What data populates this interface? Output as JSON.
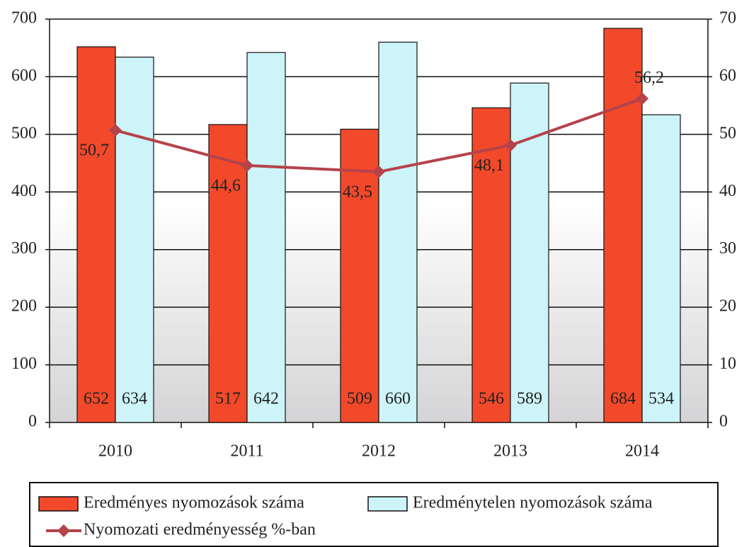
{
  "chart_data": {
    "type": "bar",
    "categories": [
      "2010",
      "2011",
      "2012",
      "2013",
      "2014"
    ],
    "series": [
      {
        "name": "Eredményes nyomozások száma",
        "color": "#f2492b",
        "values": [
          652,
          517,
          509,
          546,
          684
        ]
      },
      {
        "name": "Eredménytelen nyomozások száma",
        "color": "#cdf4f8",
        "values": [
          634,
          642,
          660,
          589,
          534
        ]
      },
      {
        "name": "Nyomozati eredményesség %-ban",
        "type": "line",
        "axis": "y2",
        "color": "#b5434a",
        "values": [
          50.7,
          44.6,
          43.5,
          48.1,
          56.2
        ],
        "value_labels": [
          "50,7",
          "44,6",
          "43,5",
          "48,1",
          "56,2"
        ]
      }
    ],
    "ylim": [
      0,
      700
    ],
    "yticks": [
      0,
      100,
      200,
      300,
      400,
      500,
      600,
      700
    ],
    "y2lim": [
      0,
      70
    ],
    "y2ticks": [
      0,
      10,
      20,
      30,
      40,
      50,
      60,
      70
    ],
    "grid": true
  }
}
